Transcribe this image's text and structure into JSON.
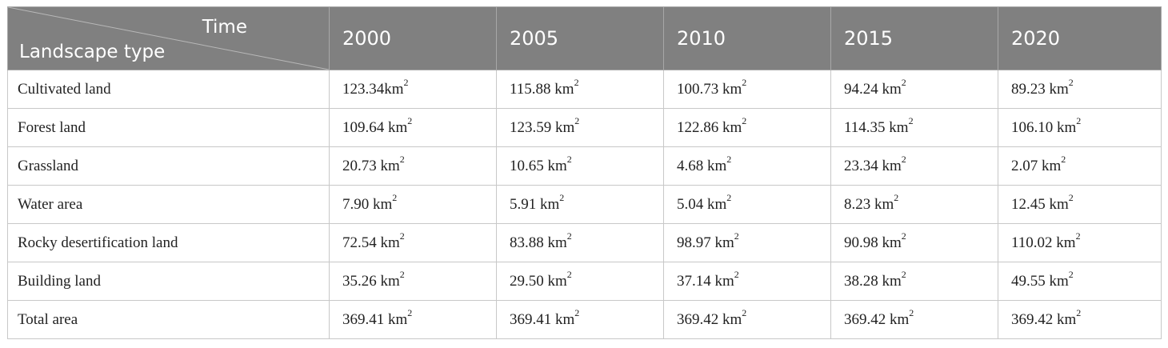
{
  "table": {
    "header": {
      "corner_top": "Time",
      "corner_bottom": "Landscape type",
      "years": [
        "2000",
        "2005",
        "2010",
        "2015",
        "2020"
      ]
    },
    "rows": [
      {
        "label": "Cultivated land",
        "values": [
          "123.34km",
          "115.88 km",
          "100.73 km",
          "94.24 km",
          "89.23 km"
        ]
      },
      {
        "label": "Forest land",
        "values": [
          "109.64 km",
          "123.59 km",
          "122.86 km",
          "114.35 km",
          "106.10 km"
        ]
      },
      {
        "label": "Grassland",
        "values": [
          "20.73 km",
          "10.65 km",
          "4.68 km",
          "23.34 km",
          "2.07 km"
        ]
      },
      {
        "label": "Water area",
        "values": [
          "7.90 km",
          "5.91 km",
          "5.04 km",
          "8.23 km",
          "12.45 km"
        ]
      },
      {
        "label": "Rocky desertification land",
        "values": [
          "72.54 km",
          "83.88 km",
          "98.97 km",
          "90.98 km",
          "110.02 km"
        ]
      },
      {
        "label": "Building land",
        "values": [
          "35.26 km",
          "29.50 km",
          "37.14 km",
          "38.28 km",
          "49.55 km"
        ]
      },
      {
        "label": "Total area",
        "values": [
          "369.41 km",
          "369.41 km",
          "369.42 km",
          "369.42 km",
          "369.42 km"
        ]
      }
    ],
    "unit_superscript": "2"
  }
}
